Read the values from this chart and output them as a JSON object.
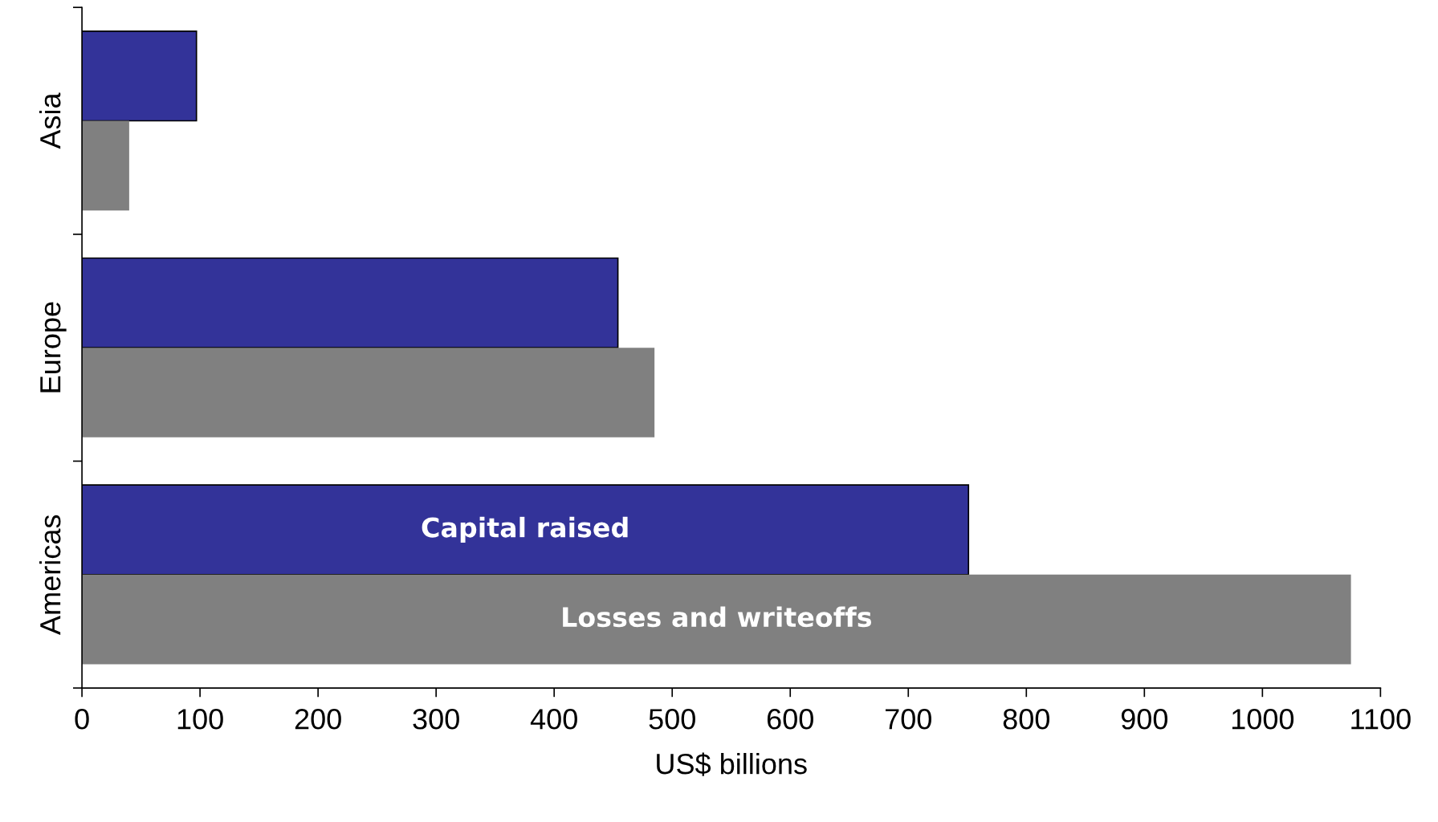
{
  "chart_data": {
    "type": "bar",
    "orientation": "horizontal",
    "categories": [
      "Asia",
      "Europe",
      "Americas"
    ],
    "xlabel": "US$ billions",
    "xlim": [
      0,
      1100
    ],
    "xticks": [
      0,
      100,
      200,
      300,
      400,
      500,
      600,
      700,
      800,
      900,
      1000,
      1100
    ],
    "grid": false,
    "series": [
      {
        "name": "Capital raised",
        "color": "#333399",
        "values": [
          97,
          454,
          751
        ]
      },
      {
        "name": "Losses and writeoffs",
        "color": "#808080",
        "values": [
          40,
          485,
          1075
        ]
      }
    ]
  }
}
